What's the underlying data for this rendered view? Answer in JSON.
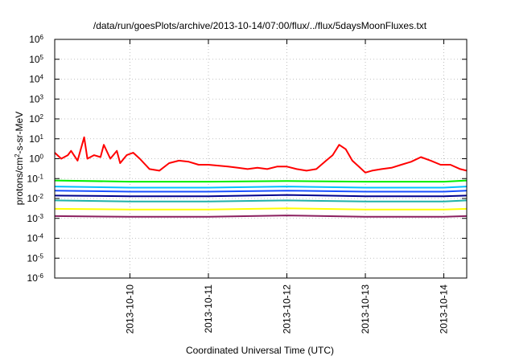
{
  "chart_data": {
    "type": "line",
    "title": "/data/run/goesPlots/archive/2013-10-14/07:00/flux/../flux/5daysMoonFluxes.txt",
    "xlabel": "Coordinated Universal Time (UTC)",
    "ylabel": {
      "prefix": "protons/cm",
      "sup": "2",
      "suffix": "-s-sr-MeV"
    },
    "yscale": "log",
    "ylim": [
      1e-06,
      1000000.0
    ],
    "xlim": [
      "2013-10-09T01:00",
      "2013-10-14T07:00"
    ],
    "grid": true,
    "y_ticks": [
      {
        "value": 1e-06,
        "base": "10",
        "exp": "-6"
      },
      {
        "value": 1e-05,
        "base": "10",
        "exp": "-5"
      },
      {
        "value": 0.0001,
        "base": "10",
        "exp": "-4"
      },
      {
        "value": 0.001,
        "base": "10",
        "exp": "-3"
      },
      {
        "value": 0.01,
        "base": "10",
        "exp": "-2"
      },
      {
        "value": 0.1,
        "base": "10",
        "exp": "-1"
      },
      {
        "value": 1,
        "base": "10",
        "exp": "0"
      },
      {
        "value": 10,
        "base": "10",
        "exp": "1"
      },
      {
        "value": 100,
        "base": "10",
        "exp": "2"
      },
      {
        "value": 1000,
        "base": "10",
        "exp": "3"
      },
      {
        "value": 10000,
        "base": "10",
        "exp": "4"
      },
      {
        "value": 100000,
        "base": "10",
        "exp": "5"
      },
      {
        "value": 1000000,
        "base": "10",
        "exp": "6"
      }
    ],
    "x_ticks": [
      {
        "value": "2013-10-10T00:00",
        "label": "2013-10-10"
      },
      {
        "value": "2013-10-11T00:00",
        "label": "2013-10-11"
      },
      {
        "value": "2013-10-12T00:00",
        "label": "2013-10-12"
      },
      {
        "value": "2013-10-13T00:00",
        "label": "2013-10-13"
      },
      {
        "value": "2013-10-14T00:00",
        "label": "2013-10-14"
      }
    ],
    "series": [
      {
        "color": "#ff0000",
        "x": [
          "2013-10-09T01:00",
          "2013-10-09T03:00",
          "2013-10-09T05:00",
          "2013-10-09T06:00",
          "2013-10-09T08:00",
          "2013-10-09T10:00",
          "2013-10-09T11:00",
          "2013-10-09T13:00",
          "2013-10-09T15:00",
          "2013-10-09T16:00",
          "2013-10-09T18:00",
          "2013-10-09T20:00",
          "2013-10-09T21:00",
          "2013-10-09T23:00",
          "2013-10-10T01:00",
          "2013-10-10T03:00",
          "2013-10-10T06:00",
          "2013-10-10T09:00",
          "2013-10-10T12:00",
          "2013-10-10T15:00",
          "2013-10-10T18:00",
          "2013-10-10T21:00",
          "2013-10-11T00:00",
          "2013-10-11T03:00",
          "2013-10-11T06:00",
          "2013-10-11T09:00",
          "2013-10-11T12:00",
          "2013-10-11T15:00",
          "2013-10-11T18:00",
          "2013-10-11T21:00",
          "2013-10-12T00:00",
          "2013-10-12T03:00",
          "2013-10-12T06:00",
          "2013-10-12T09:00",
          "2013-10-12T12:00",
          "2013-10-12T14:00",
          "2013-10-12T16:00",
          "2013-10-12T18:00",
          "2013-10-12T20:00",
          "2013-10-12T22:00",
          "2013-10-13T00:00",
          "2013-10-13T02:00",
          "2013-10-13T05:00",
          "2013-10-13T08:00",
          "2013-10-13T11:00",
          "2013-10-13T14:00",
          "2013-10-13T17:00",
          "2013-10-13T20:00",
          "2013-10-13T23:00",
          "2013-10-14T02:00",
          "2013-10-14T05:00",
          "2013-10-14T07:00"
        ],
        "y": [
          2,
          1,
          1.5,
          2.5,
          0.8,
          12,
          1,
          1.5,
          1.2,
          5,
          1,
          2.5,
          0.6,
          1.5,
          2,
          1,
          0.3,
          0.25,
          0.6,
          0.8,
          0.7,
          0.5,
          0.5,
          0.45,
          0.4,
          0.35,
          0.3,
          0.35,
          0.3,
          0.4,
          0.4,
          0.3,
          0.25,
          0.3,
          0.8,
          1.5,
          5,
          3,
          0.8,
          0.4,
          0.2,
          0.25,
          0.3,
          0.35,
          0.5,
          0.7,
          1.2,
          0.8,
          0.5,
          0.5,
          0.3,
          0.25
        ]
      },
      {
        "color": "#00ee00",
        "x": [
          "2013-10-09T01:00",
          "2013-10-10T00:00",
          "2013-10-11T00:00",
          "2013-10-12T00:00",
          "2013-10-13T00:00",
          "2013-10-14T00:00",
          "2013-10-14T07:00"
        ],
        "y": [
          0.08,
          0.07,
          0.07,
          0.075,
          0.07,
          0.07,
          0.08
        ]
      },
      {
        "color": "#00bfff",
        "x": [
          "2013-10-09T01:00",
          "2013-10-10T00:00",
          "2013-10-11T00:00",
          "2013-10-12T00:00",
          "2013-10-13T00:00",
          "2013-10-14T00:00",
          "2013-10-14T07:00"
        ],
        "y": [
          0.04,
          0.035,
          0.035,
          0.04,
          0.035,
          0.035,
          0.04
        ]
      },
      {
        "color": "#1a4fff",
        "x": [
          "2013-10-09T01:00",
          "2013-10-10T00:00",
          "2013-10-11T00:00",
          "2013-10-12T00:00",
          "2013-10-13T00:00",
          "2013-10-14T00:00",
          "2013-10-14T07:00"
        ],
        "y": [
          0.025,
          0.022,
          0.022,
          0.025,
          0.022,
          0.022,
          0.025
        ]
      },
      {
        "color": "#00008b",
        "x": [
          "2013-10-09T01:00",
          "2013-10-10T00:00",
          "2013-10-11T00:00",
          "2013-10-12T00:00",
          "2013-10-13T00:00",
          "2013-10-14T00:00",
          "2013-10-14T07:00"
        ],
        "y": [
          0.014,
          0.013,
          0.013,
          0.015,
          0.013,
          0.013,
          0.014
        ]
      },
      {
        "color": "#20b2aa",
        "x": [
          "2013-10-09T01:00",
          "2013-10-10T00:00",
          "2013-10-11T00:00",
          "2013-10-12T00:00",
          "2013-10-13T00:00",
          "2013-10-14T00:00",
          "2013-10-14T07:00"
        ],
        "y": [
          0.008,
          0.007,
          0.007,
          0.008,
          0.007,
          0.007,
          0.008
        ]
      },
      {
        "color": "#ffff00",
        "x": [
          "2013-10-09T01:00",
          "2013-10-10T00:00",
          "2013-10-11T00:00",
          "2013-10-12T00:00",
          "2013-10-13T00:00",
          "2013-10-14T00:00",
          "2013-10-14T07:00"
        ],
        "y": [
          0.003,
          0.0028,
          0.0028,
          0.0032,
          0.0028,
          0.0028,
          0.003
        ]
      },
      {
        "color": "#8b2060",
        "x": [
          "2013-10-09T01:00",
          "2013-10-10T00:00",
          "2013-10-11T00:00",
          "2013-10-12T00:00",
          "2013-10-13T00:00",
          "2013-10-14T00:00",
          "2013-10-14T07:00"
        ],
        "y": [
          0.0013,
          0.0012,
          0.0012,
          0.0014,
          0.0012,
          0.0012,
          0.0013
        ]
      }
    ]
  }
}
